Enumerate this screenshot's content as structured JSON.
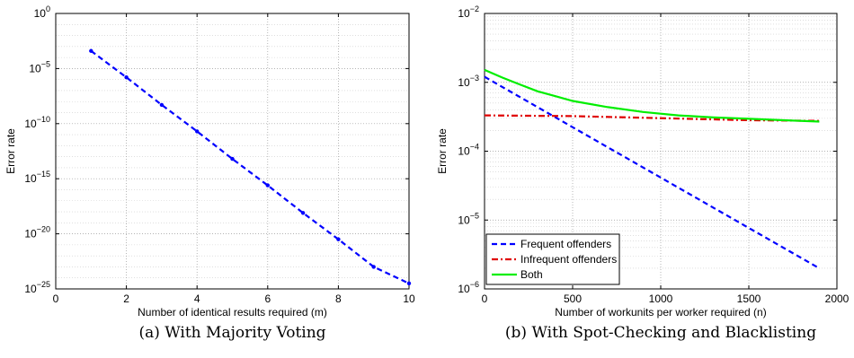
{
  "chart_data": [
    {
      "type": "line",
      "caption": "(a) With Majority Voting",
      "xlabel": "Number of identical results required (m)",
      "ylabel": "Error rate",
      "xlim": [
        0,
        10
      ],
      "ylim_log10": [
        -25,
        0
      ],
      "y_scale": "log",
      "grid": true,
      "x_ticks": [
        "0",
        "2",
        "4",
        "6",
        "8",
        "10"
      ],
      "y_ticks": [
        {
          "base": "10",
          "exp": "0"
        },
        {
          "base": "10",
          "exp": "−5"
        },
        {
          "base": "10",
          "exp": "−10"
        },
        {
          "base": "10",
          "exp": "−15"
        },
        {
          "base": "10",
          "exp": "−20"
        },
        {
          "base": "10",
          "exp": "−25"
        }
      ],
      "series": [
        {
          "color": "#0000ff",
          "style": "dashed-with-markers",
          "x": [
            1,
            2,
            3,
            4,
            5,
            6,
            7,
            8,
            9,
            10
          ],
          "y_log10": [
            -3.4,
            -5.8,
            -8.3,
            -10.7,
            -13.2,
            -15.6,
            -18.1,
            -20.5,
            -23.0,
            -24.5
          ]
        }
      ]
    },
    {
      "type": "line",
      "caption": "(b) With Spot-Checking and Blacklisting",
      "xlabel": "Number of workunits per worker required (n)",
      "ylabel": "Error rate",
      "xlim": [
        0,
        2000
      ],
      "ylim_log10": [
        -6,
        -2
      ],
      "y_scale": "log",
      "grid": true,
      "legend_position": "bottom-left",
      "x_ticks": [
        "0",
        "500",
        "1000",
        "1500",
        "2000"
      ],
      "y_ticks": [
        {
          "base": "10",
          "exp": "−2"
        },
        {
          "base": "10",
          "exp": "−3"
        },
        {
          "base": "10",
          "exp": "−4"
        },
        {
          "base": "10",
          "exp": "−5"
        },
        {
          "base": "10",
          "exp": "−6"
        }
      ],
      "series": [
        {
          "name": "Frequent offenders",
          "color": "#0000ff",
          "style": "dashed",
          "x": [
            0,
            1900
          ],
          "y_log10": [
            -2.92,
            -5.7
          ]
        },
        {
          "name": "Infrequent offenders",
          "color": "#e00000",
          "style": "dashdot",
          "x": [
            0,
            500,
            1000,
            1500,
            1900
          ],
          "y_log10": [
            -3.48,
            -3.49,
            -3.52,
            -3.55,
            -3.56
          ]
        },
        {
          "name": "Both",
          "color": "#00ee00",
          "style": "solid",
          "x": [
            0,
            100,
            200,
            300,
            400,
            500,
            700,
            900,
            1100,
            1300,
            1500,
            1700,
            1900
          ],
          "y_log10": [
            -2.82,
            -2.93,
            -3.03,
            -3.13,
            -3.2,
            -3.27,
            -3.36,
            -3.43,
            -3.48,
            -3.51,
            -3.53,
            -3.55,
            -3.57
          ]
        }
      ]
    }
  ]
}
